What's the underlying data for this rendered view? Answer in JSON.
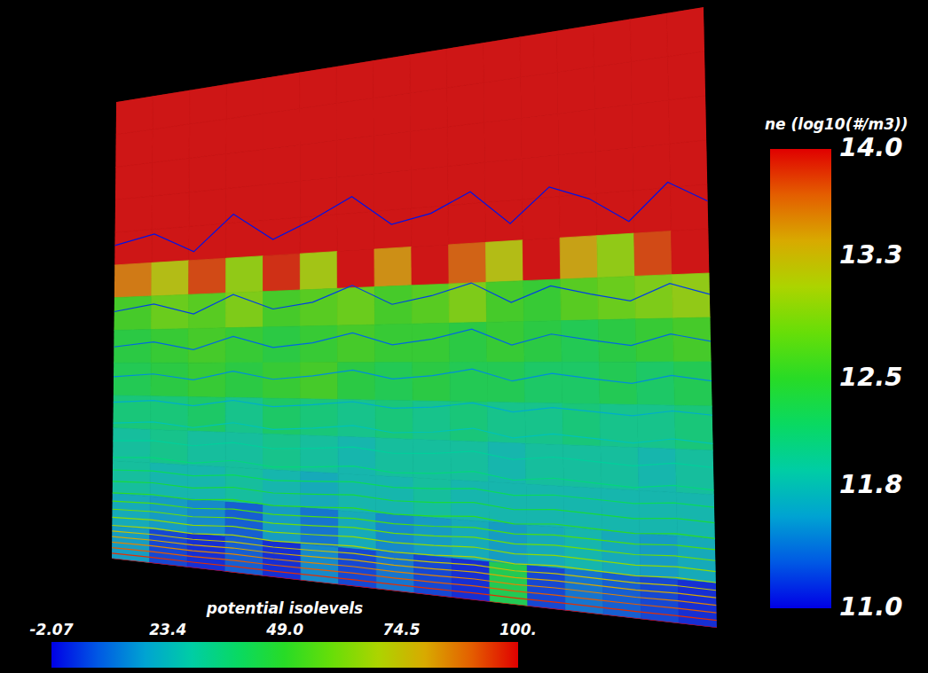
{
  "chart_data": {
    "type": "heatmap",
    "ne": {
      "title": "ne (log10(#/m3))",
      "colorbar_range": [
        11,
        14
      ],
      "colorbar_ticks": [
        {
          "value": 11,
          "label": "11.0"
        },
        11.8,
        12.5,
        13.3,
        {
          "value": 14,
          "label": "14.0"
        }
      ],
      "values": [
        [
          14,
          14,
          14,
          14,
          14,
          14,
          14,
          14,
          14,
          14,
          14,
          14,
          14,
          14,
          14,
          14
        ],
        [
          14,
          14,
          14,
          14,
          14,
          14,
          14,
          14,
          14,
          14,
          14,
          14,
          14,
          14,
          14,
          14
        ],
        [
          14,
          14,
          14,
          14,
          14,
          14,
          14,
          14,
          14,
          14,
          14,
          14,
          14,
          14,
          14,
          14
        ],
        [
          14,
          14,
          14,
          14,
          14,
          14,
          14,
          14,
          14,
          14,
          14,
          14,
          14,
          14,
          14,
          14
        ],
        [
          14,
          14,
          14,
          14,
          14,
          14,
          14,
          14,
          14,
          14,
          14,
          14,
          14,
          14,
          14,
          14
        ],
        [
          13.6,
          13.2,
          13.8,
          13.0,
          13.9,
          13.1,
          14,
          13.5,
          14,
          13.7,
          13.2,
          14,
          13.4,
          13.0,
          13.8,
          14
        ],
        [
          12.6,
          12.8,
          12.7,
          12.9,
          12.6,
          12.7,
          12.8,
          12.6,
          12.7,
          12.9,
          12.6,
          12.5,
          12.7,
          12.8,
          12.9,
          13.0
        ],
        [
          12.4,
          12.5,
          12.6,
          12.5,
          12.4,
          12.5,
          12.6,
          12.5,
          12.5,
          12.4,
          12.5,
          12.4,
          12.3,
          12.4,
          12.5,
          12.6
        ],
        [
          12.3,
          12.4,
          12.5,
          12.4,
          12.5,
          12.6,
          12.4,
          12.3,
          12.4,
          12.3,
          12.3,
          12.2,
          12.2,
          12.3,
          12.2,
          12.3
        ],
        [
          12.1,
          12.1,
          12.2,
          12.0,
          12.2,
          12.1,
          12.0,
          12.1,
          12.0,
          12.1,
          12.0,
          12.0,
          12.1,
          12.0,
          12.0,
          12.1
        ],
        [
          11.9,
          12.0,
          11.9,
          11.9,
          12.0,
          11.9,
          11.8,
          11.9,
          11.9,
          11.9,
          11.8,
          11.9,
          11.9,
          11.9,
          11.8,
          11.9
        ],
        [
          11.9,
          11.8,
          11.8,
          11.9,
          11.8,
          11.7,
          11.8,
          11.8,
          11.9,
          11.8,
          11.8,
          11.8,
          11.8,
          11.8,
          11.8,
          11.8
        ],
        [
          11.7,
          11.6,
          11.5,
          11.3,
          11.6,
          11.4,
          11.7,
          11.5,
          11.6,
          11.7,
          11.6,
          11.7,
          11.8,
          11.7,
          11.6,
          11.7
        ],
        [
          11.6,
          11.2,
          11.1,
          11.3,
          11.1,
          11.5,
          11.2,
          11.4,
          11.2,
          11.1,
          12.3,
          11.2,
          11.4,
          11.3,
          11.2,
          11.1
        ]
      ]
    },
    "potential": {
      "title": "potential isolevels",
      "colorbar_range": [
        -2.07,
        100
      ],
      "colorbar_ticks": [
        -2.07,
        23.4,
        {
          "value": 49,
          "label": "49.0"
        },
        74.5,
        {
          "value": 100,
          "label": "100."
        }
      ],
      "levels": [
        0,
        5,
        10,
        15,
        20,
        25,
        30,
        35,
        40,
        45,
        50,
        55,
        60,
        65,
        70,
        75,
        80,
        85,
        90,
        95,
        100
      ],
      "values": [
        [
          -2.0,
          -2.0,
          -2.0,
          -2.0,
          -2.0,
          -2.0,
          -2.0,
          -2.0,
          -2.0,
          -2.0,
          -2.0,
          -2.0,
          -2.0,
          -2.0,
          -2.0,
          -2.0
        ],
        [
          -2.0,
          -2.0,
          -2.0,
          -2.0,
          -2.0,
          -2.0,
          -2.0,
          -2.0,
          -2.0,
          -2.0,
          -2.0,
          -2.0,
          -2.0,
          -2.0,
          -2.0,
          -2.0
        ],
        [
          -1.6,
          -1.5,
          -1.7,
          -1.4,
          -1.6,
          -1.5,
          -1.3,
          -1.6,
          -1.5,
          -1.4,
          -1.6,
          -1.5,
          -1.4,
          -1.6,
          -1.5,
          -1.6
        ],
        [
          -1.0,
          -0.9,
          -1.2,
          -0.6,
          -1.1,
          -0.8,
          -0.5,
          -1.0,
          -0.9,
          -0.7,
          -1.0,
          -0.6,
          -0.8,
          -1.1,
          -0.7,
          -0.9
        ],
        [
          -0.4,
          -0.2,
          -0.6,
          0.2,
          -0.5,
          -0.1,
          0.4,
          -0.3,
          -0.2,
          0.3,
          -0.4,
          0.2,
          -0.1,
          -0.5,
          0.1,
          -0.3
        ],
        [
          0.6,
          1.2,
          0.2,
          1.8,
          0.4,
          1.0,
          2.2,
          0.5,
          1.0,
          2.0,
          0.3,
          1.6,
          0.8,
          0.2,
          1.4,
          0.5
        ],
        [
          3.2,
          4.0,
          2.6,
          4.8,
          3.0,
          3.6,
          5.2,
          3.0,
          3.8,
          5.0,
          2.8,
          4.4,
          3.4,
          2.6,
          4.2,
          3.0
        ],
        [
          7.4,
          8.2,
          6.8,
          8.8,
          7.0,
          7.6,
          9.0,
          7.2,
          8.0,
          9.2,
          7.0,
          8.4,
          7.6,
          6.8,
          8.2,
          7.2
        ],
        [
          12.5,
          13.0,
          12.0,
          13.6,
          12.2,
          12.8,
          13.8,
          12.4,
          13.0,
          14.0,
          12.2,
          13.4,
          12.6,
          12.0,
          13.2,
          12.4
        ],
        [
          18.4,
          19.0,
          18.0,
          19.4,
          18.2,
          18.8,
          19.6,
          18.4,
          18.8,
          19.8,
          18.2,
          19.2,
          18.6,
          18.0,
          19.0,
          18.4
        ],
        [
          26.2,
          26.8,
          25.8,
          27.2,
          26.0,
          26.6,
          27.4,
          26.2,
          26.6,
          27.6,
          26.0,
          27.0,
          26.4,
          25.8,
          26.8,
          26.2
        ],
        [
          36.0,
          36.6,
          35.6,
          37.0,
          35.8,
          36.4,
          37.2,
          36.0,
          36.4,
          37.4,
          35.8,
          36.8,
          36.2,
          35.6,
          36.6,
          36.0
        ],
        [
          50.2,
          50.8,
          49.8,
          51.2,
          50.0,
          50.6,
          51.4,
          50.2,
          50.6,
          51.6,
          50.0,
          51.0,
          50.4,
          49.8,
          50.8,
          50.2
        ],
        [
          70.4,
          71.0,
          70.0,
          71.4,
          70.2,
          70.8,
          71.6,
          70.4,
          70.8,
          71.8,
          70.2,
          71.2,
          70.6,
          70.0,
          71.0,
          70.4
        ],
        [
          100,
          100,
          100,
          100,
          100,
          100,
          100,
          100,
          100,
          100,
          100,
          100,
          100,
          100,
          100,
          100
        ]
      ]
    }
  }
}
